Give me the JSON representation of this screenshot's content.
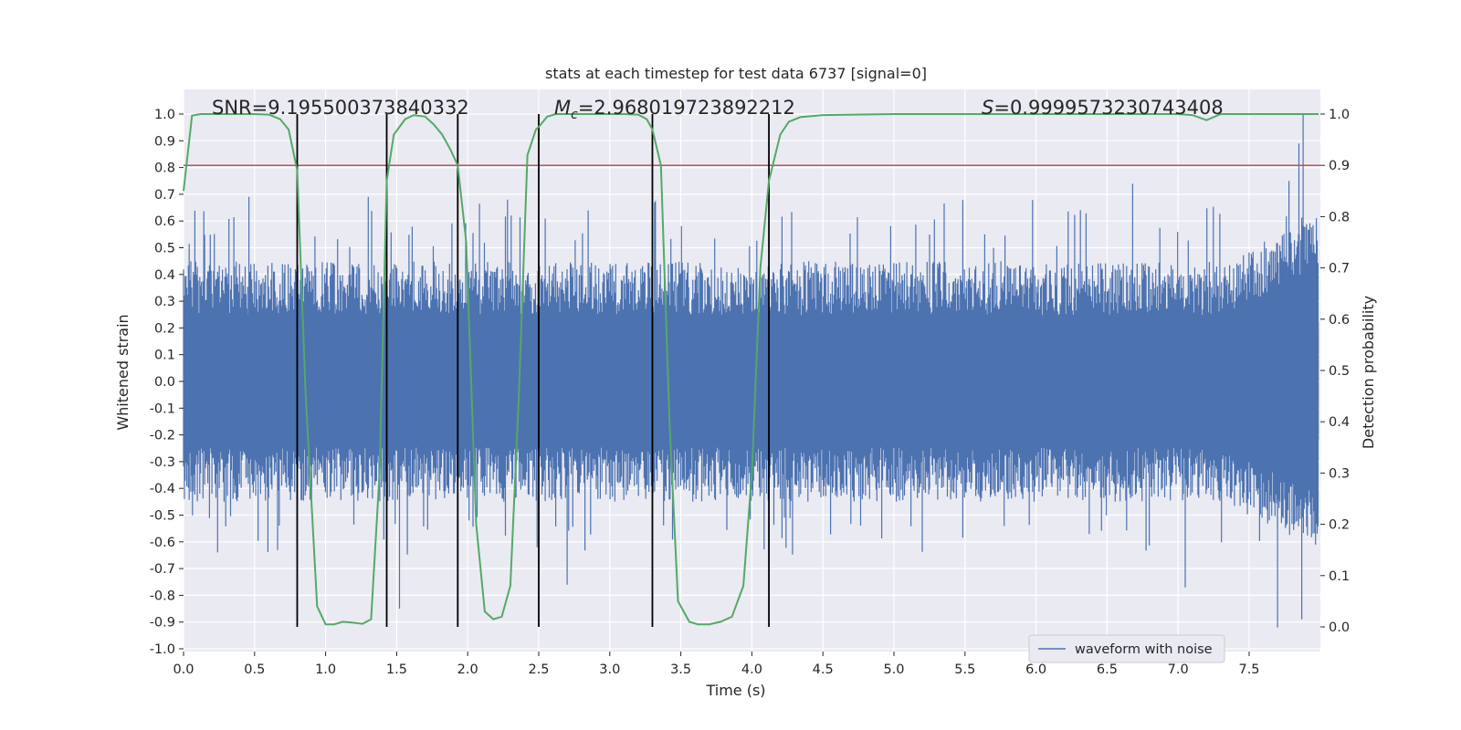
{
  "chart_data": {
    "type": "line",
    "title": "stats at each timestep for test data 6737 [signal=0]",
    "xlabel": "Time (s)",
    "ylabel": "Whitened strain",
    "ylabel_right": "Detection probability",
    "xlim": [
      0,
      8.0
    ],
    "ylim": [
      -1.0,
      1.0
    ],
    "ylim_right": [
      0.0,
      1.0
    ],
    "xticks": [
      "0.0",
      "0.5",
      "1.0",
      "1.5",
      "2.0",
      "2.5",
      "3.0",
      "3.5",
      "4.0",
      "4.5",
      "5.0",
      "5.5",
      "6.0",
      "6.5",
      "7.0",
      "7.5"
    ],
    "yticks": [
      "1.0",
      "0.9",
      "0.8",
      "0.7",
      "0.6",
      "0.5",
      "0.4",
      "0.3",
      "0.2",
      "0.1",
      "0.0",
      "-0.1",
      "-0.2",
      "-0.3",
      "-0.4",
      "-0.5",
      "-0.6",
      "-0.7",
      "-0.8",
      "-0.9",
      "-1.0"
    ],
    "yticks_right": [
      "1.0",
      "0.9",
      "0.8",
      "0.7",
      "0.6",
      "0.5",
      "0.4",
      "0.3",
      "0.2",
      "0.1",
      "0.0"
    ],
    "grid": true,
    "annotations": {
      "snr": "SNR=9.195500373840332",
      "mc": "=2.968019723892212",
      "mc_symbol": "M",
      "mc_sub": "c",
      "s": "=0.9999573230743408",
      "s_symbol": "S"
    },
    "legend": {
      "label": "waveform with noise",
      "placement": "lower-right"
    },
    "colors": {
      "waveform": "#4c72b0",
      "probability": "#55a868",
      "threshold": "#c44e52",
      "markers": "#000000",
      "background": "#eaeaf2"
    },
    "threshold": 0.9,
    "boundaries": [
      0.8,
      1.43,
      1.93,
      2.5,
      3.3,
      4.12
    ],
    "waveform_envelope": {
      "typical_peak": 0.45,
      "max_value": 1.0,
      "min_value": -0.92,
      "notable_peaks": [
        {
          "x": 0.46,
          "y": 0.69
        },
        {
          "x": 1.3,
          "y": 0.69
        },
        {
          "x": 2.28,
          "y": 0.68
        },
        {
          "x": 6.68,
          "y": 0.74
        },
        {
          "x": 7.78,
          "y": 0.75
        },
        {
          "x": 7.85,
          "y": 0.89
        },
        {
          "x": 7.88,
          "y": 1.0
        },
        {
          "x": 7.7,
          "y": -0.92
        },
        {
          "x": 7.87,
          "y": -0.89
        },
        {
          "x": 2.7,
          "y": -0.76
        },
        {
          "x": 1.52,
          "y": -0.85
        },
        {
          "x": 7.05,
          "y": -0.77
        }
      ]
    },
    "series": [
      {
        "name": "waveform with noise",
        "axis": "left"
      },
      {
        "axis": "right",
        "x": [
          0.0,
          0.06,
          0.12,
          0.2,
          0.3,
          0.4,
          0.5,
          0.6,
          0.68,
          0.74,
          0.8,
          0.86,
          0.94,
          1.0,
          1.06,
          1.12,
          1.2,
          1.26,
          1.32,
          1.38,
          1.43,
          1.48,
          1.56,
          1.62,
          1.7,
          1.76,
          1.82,
          1.88,
          1.93,
          1.99,
          2.06,
          2.12,
          2.18,
          2.24,
          2.3,
          2.36,
          2.42,
          2.48,
          2.5,
          2.56,
          2.62,
          2.68,
          2.8,
          2.9,
          3.0,
          3.1,
          3.2,
          3.26,
          3.3,
          3.36,
          3.42,
          3.48,
          3.56,
          3.62,
          3.7,
          3.78,
          3.86,
          3.94,
          4.0,
          4.06,
          4.12,
          4.2,
          4.26,
          4.34,
          4.5,
          5.0,
          5.5,
          6.0,
          6.5,
          7.0,
          7.1,
          7.2,
          7.3,
          7.5,
          7.99
        ],
        "y": [
          0.85,
          0.997,
          1.0,
          1.0,
          1.0,
          1.0,
          1.0,
          0.999,
          0.99,
          0.97,
          0.89,
          0.45,
          0.04,
          0.005,
          0.005,
          0.01,
          0.008,
          0.006,
          0.015,
          0.3,
          0.87,
          0.96,
          0.99,
          0.998,
          0.995,
          0.98,
          0.96,
          0.93,
          0.9,
          0.75,
          0.2,
          0.03,
          0.015,
          0.02,
          0.08,
          0.45,
          0.92,
          0.97,
          0.975,
          0.995,
          1.0,
          1.0,
          1.0,
          1.0,
          1.0,
          1.0,
          0.999,
          0.99,
          0.97,
          0.9,
          0.4,
          0.05,
          0.01,
          0.005,
          0.005,
          0.01,
          0.02,
          0.08,
          0.3,
          0.7,
          0.87,
          0.96,
          0.985,
          0.994,
          0.998,
          1.0,
          1.0,
          1.0,
          1.0,
          1.0,
          0.998,
          0.988,
          1.0,
          1.0,
          1.0
        ]
      }
    ]
  }
}
